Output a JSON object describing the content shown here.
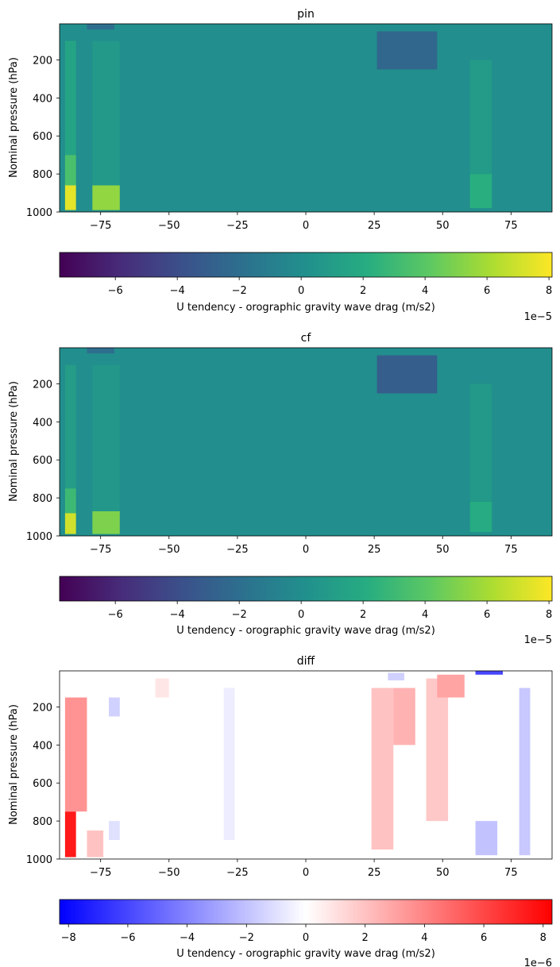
{
  "chart_data": [
    {
      "type": "heatmap",
      "title": "pin",
      "xlabel": "",
      "ylabel": "Nominal pressure (hPa)",
      "xlim": [
        -90,
        90
      ],
      "ylim": [
        1000,
        10
      ],
      "x_ticks": [
        -75,
        -50,
        -25,
        0,
        25,
        50,
        75
      ],
      "y_ticks": [
        200,
        400,
        600,
        800,
        1000
      ],
      "colormap": "viridis",
      "colorbar": {
        "label": "U tendency - orographic gravity wave drag (m/s2)",
        "range": [
          -7.8,
          8.1
        ],
        "ticks": [
          -6,
          -4,
          -2,
          0,
          2,
          4,
          6,
          8
        ],
        "offset_text": "1e−5"
      },
      "features": [
        {
          "lat": [
            -88,
            -84
          ],
          "p": [
            850,
            990
          ],
          "value": 7.5
        },
        {
          "lat": [
            -78,
            -68
          ],
          "p": [
            860,
            990
          ],
          "value": 5.5
        },
        {
          "lat": [
            -88,
            -84
          ],
          "p": [
            700,
            860
          ],
          "value": 3.5
        },
        {
          "lat": [
            -88,
            -84
          ],
          "p": [
            100,
            700
          ],
          "value": 1.5
        },
        {
          "lat": [
            -78,
            -68
          ],
          "p": [
            100,
            860
          ],
          "value": 0.8
        },
        {
          "lat": [
            26,
            48
          ],
          "p": [
            50,
            250
          ],
          "value": -2.5
        },
        {
          "lat": [
            60,
            68
          ],
          "p": [
            800,
            980
          ],
          "value": 2.2
        },
        {
          "lat": [
            60,
            68
          ],
          "p": [
            200,
            800
          ],
          "value": 0.9
        },
        {
          "lat": [
            -80,
            -70
          ],
          "p": [
            10,
            40
          ],
          "value": -2.0
        }
      ]
    },
    {
      "type": "heatmap",
      "title": "cf",
      "xlabel": "",
      "ylabel": "Nominal pressure (hPa)",
      "xlim": [
        -90,
        90
      ],
      "ylim": [
        1000,
        10
      ],
      "x_ticks": [
        -75,
        -50,
        -25,
        0,
        25,
        50,
        75
      ],
      "y_ticks": [
        200,
        400,
        600,
        800,
        1000
      ],
      "colormap": "viridis",
      "colorbar": {
        "label": "U tendency - orographic gravity wave drag (m/s2)",
        "range": [
          -7.8,
          8.1
        ],
        "ticks": [
          -6,
          -4,
          -2,
          0,
          2,
          4,
          6,
          8
        ],
        "offset_text": "1e−5"
      },
      "features": [
        {
          "lat": [
            -88,
            -84
          ],
          "p": [
            880,
            990
          ],
          "value": 7.0
        },
        {
          "lat": [
            -78,
            -68
          ],
          "p": [
            870,
            990
          ],
          "value": 5.0
        },
        {
          "lat": [
            -88,
            -84
          ],
          "p": [
            750,
            880
          ],
          "value": 3.0
        },
        {
          "lat": [
            -88,
            -84
          ],
          "p": [
            100,
            750
          ],
          "value": 1.0
        },
        {
          "lat": [
            -78,
            -68
          ],
          "p": [
            100,
            870
          ],
          "value": 0.6
        },
        {
          "lat": [
            26,
            48
          ],
          "p": [
            50,
            250
          ],
          "value": -3.0
        },
        {
          "lat": [
            60,
            68
          ],
          "p": [
            820,
            980
          ],
          "value": 2.0
        },
        {
          "lat": [
            60,
            68
          ],
          "p": [
            200,
            820
          ],
          "value": 0.8
        },
        {
          "lat": [
            -80,
            -70
          ],
          "p": [
            10,
            40
          ],
          "value": -2.0
        }
      ]
    },
    {
      "type": "heatmap",
      "title": "diff",
      "xlabel": "",
      "ylabel": "Nominal pressure (hPa)",
      "xlim": [
        -90,
        90
      ],
      "ylim": [
        1000,
        10
      ],
      "x_ticks": [
        -75,
        -50,
        -25,
        0,
        25,
        50,
        75
      ],
      "y_ticks": [
        200,
        400,
        600,
        800,
        1000
      ],
      "colormap": "bwr",
      "colorbar": {
        "label": "U tendency - orographic gravity wave drag (m/s2)",
        "range": [
          -8.3,
          8.3
        ],
        "ticks": [
          -8,
          -6,
          -4,
          -2,
          0,
          2,
          4,
          6,
          8
        ],
        "offset_text": "1e−6"
      },
      "features": [
        {
          "lat": [
            -88,
            -84
          ],
          "p": [
            750,
            990
          ],
          "value": 7.5
        },
        {
          "lat": [
            -88,
            -80
          ],
          "p": [
            150,
            750
          ],
          "value": 3.5
        },
        {
          "lat": [
            -80,
            -74
          ],
          "p": [
            850,
            990
          ],
          "value": 2.0
        },
        {
          "lat": [
            -72,
            -68
          ],
          "p": [
            150,
            250
          ],
          "value": -1.5
        },
        {
          "lat": [
            -72,
            -68
          ],
          "p": [
            800,
            900
          ],
          "value": -1.0
        },
        {
          "lat": [
            24,
            32
          ],
          "p": [
            100,
            950
          ],
          "value": 2.0
        },
        {
          "lat": [
            32,
            40
          ],
          "p": [
            100,
            400
          ],
          "value": 2.5
        },
        {
          "lat": [
            44,
            52
          ],
          "p": [
            50,
            800
          ],
          "value": 1.8
        },
        {
          "lat": [
            48,
            58
          ],
          "p": [
            30,
            150
          ],
          "value": 3.0
        },
        {
          "lat": [
            30,
            36
          ],
          "p": [
            20,
            60
          ],
          "value": -1.5
        },
        {
          "lat": [
            62,
            72
          ],
          "p": [
            10,
            30
          ],
          "value": -6.0
        },
        {
          "lat": [
            62,
            70
          ],
          "p": [
            800,
            980
          ],
          "value": -2.0
        },
        {
          "lat": [
            78,
            82
          ],
          "p": [
            100,
            980
          ],
          "value": -1.8
        },
        {
          "lat": [
            -30,
            -26
          ],
          "p": [
            100,
            900
          ],
          "value": -0.6
        },
        {
          "lat": [
            -55,
            -50
          ],
          "p": [
            50,
            150
          ],
          "value": 0.8
        }
      ]
    }
  ]
}
